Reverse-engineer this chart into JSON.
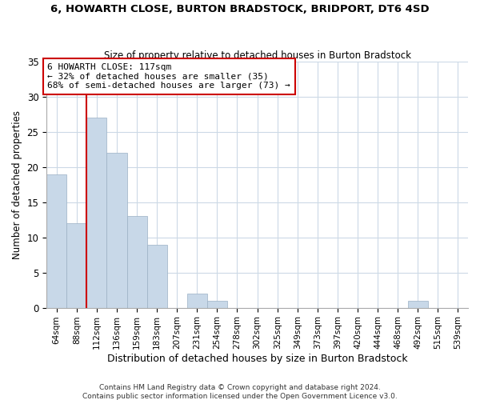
{
  "title": "6, HOWARTH CLOSE, BURTON BRADSTOCK, BRIDPORT, DT6 4SD",
  "subtitle": "Size of property relative to detached houses in Burton Bradstock",
  "xlabel": "Distribution of detached houses by size in Burton Bradstock",
  "ylabel": "Number of detached properties",
  "bar_color": "#c8d8e8",
  "bar_edge_color": "#9ab0c4",
  "bin_labels": [
    "64sqm",
    "88sqm",
    "112sqm",
    "136sqm",
    "159sqm",
    "183sqm",
    "207sqm",
    "231sqm",
    "254sqm",
    "278sqm",
    "302sqm",
    "325sqm",
    "349sqm",
    "373sqm",
    "397sqm",
    "420sqm",
    "444sqm",
    "468sqm",
    "492sqm",
    "515sqm",
    "539sqm"
  ],
  "bin_values": [
    19,
    12,
    27,
    22,
    13,
    9,
    0,
    2,
    1,
    0,
    0,
    0,
    0,
    0,
    0,
    0,
    0,
    0,
    1,
    0,
    0
  ],
  "vline_x": 1.5,
  "vline_color": "#cc0000",
  "annotation_text": "6 HOWARTH CLOSE: 117sqm\n← 32% of detached houses are smaller (35)\n68% of semi-detached houses are larger (73) →",
  "annotation_box_edge": "#cc0000",
  "ylim": [
    0,
    35
  ],
  "yticks": [
    0,
    5,
    10,
    15,
    20,
    25,
    30,
    35
  ],
  "footer1": "Contains HM Land Registry data © Crown copyright and database right 2024.",
  "footer2": "Contains public sector information licensed under the Open Government Licence v3.0.",
  "grid_color": "#ccd9e6",
  "background_color": "#ffffff"
}
